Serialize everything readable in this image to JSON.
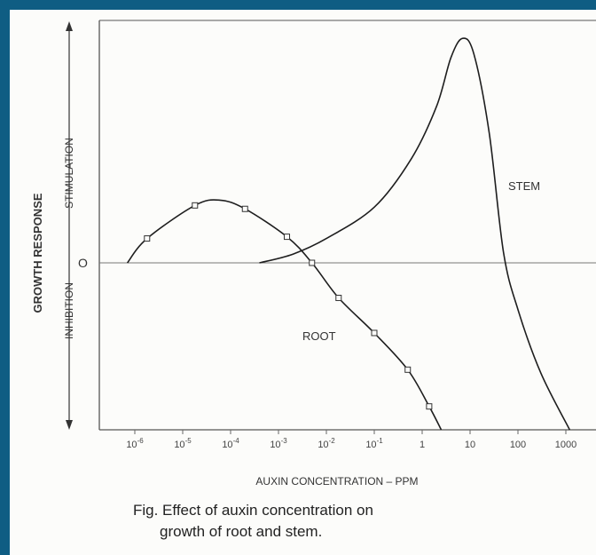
{
  "chart_data": {
    "type": "line",
    "xlabel": "AUXIN CONCENTRATION – PPM",
    "ylabel": "GROWTH RESPONSE",
    "y_upper_label": "STIMULATION",
    "y_lower_label": "INHIBITION",
    "zero_label": "O",
    "x_scale": "log",
    "xlim": [
      1e-07,
      2000
    ],
    "ylim": [
      -1,
      1.35
    ],
    "x_ticks": [
      {
        "base": "10",
        "exp": "-6",
        "value": 1e-06
      },
      {
        "base": "10",
        "exp": "-5",
        "value": 1e-05
      },
      {
        "base": "10",
        "exp": "-4",
        "value": 0.0001
      },
      {
        "base": "10",
        "exp": "-3",
        "value": 0.001
      },
      {
        "base": "10",
        "exp": "-2",
        "value": 0.01
      },
      {
        "base": "10",
        "exp": "-1",
        "value": 0.1
      },
      {
        "base": "1",
        "exp": "",
        "value": 1
      },
      {
        "base": "10",
        "exp": "",
        "value": 10
      },
      {
        "base": "100",
        "exp": "",
        "value": 100
      },
      {
        "base": "1000",
        "exp": "",
        "value": 1000
      }
    ],
    "series": [
      {
        "name": "ROOT",
        "markers": true,
        "points": [
          [
            7e-07,
            0.0
          ],
          [
            1.8e-06,
            0.14
          ],
          [
            1.8e-05,
            0.33
          ],
          [
            6e-05,
            0.36
          ],
          [
            0.0002,
            0.31
          ],
          [
            0.0015,
            0.15
          ],
          [
            0.005,
            0.0
          ],
          [
            0.018,
            -0.21
          ],
          [
            0.1,
            -0.42
          ],
          [
            0.5,
            -0.64
          ],
          [
            1.4,
            -0.86
          ],
          [
            2.5,
            -1.0
          ]
        ],
        "marker_points": [
          [
            1.8e-06,
            0.14
          ],
          [
            1.8e-05,
            0.33
          ],
          [
            0.0002,
            0.31
          ],
          [
            0.0015,
            0.15
          ],
          [
            0.005,
            0.0
          ],
          [
            0.018,
            -0.21
          ],
          [
            0.1,
            -0.42
          ],
          [
            0.5,
            -0.64
          ],
          [
            1.4,
            -0.86
          ]
        ]
      },
      {
        "name": "STEM",
        "markers": false,
        "points": [
          [
            0.0004,
            0.0
          ],
          [
            0.002,
            0.05
          ],
          [
            0.01,
            0.14
          ],
          [
            0.1,
            0.32
          ],
          [
            0.6,
            0.6
          ],
          [
            2,
            0.9
          ],
          [
            4,
            1.18
          ],
          [
            7,
            1.29
          ],
          [
            12,
            1.2
          ],
          [
            25,
            0.75
          ],
          [
            50,
            0.06
          ],
          [
            100,
            -0.28
          ],
          [
            300,
            -0.66
          ],
          [
            1200,
            -1.0
          ]
        ]
      }
    ],
    "series_labels": {
      "ROOT": "ROOT",
      "STEM": "STEM"
    },
    "caption_line1": "Fig.  Effect of auxin concentration on",
    "caption_line2": "growth of root and stem."
  }
}
